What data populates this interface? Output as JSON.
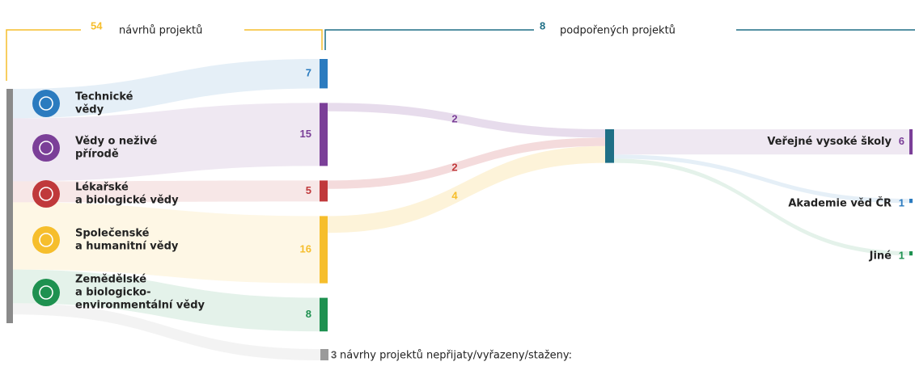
{
  "header": {
    "proposals": {
      "count": 54,
      "label": "návrhů projektů"
    },
    "supported": {
      "count": 8,
      "label": "podpořených projektů"
    }
  },
  "fields": [
    {
      "lines": [
        "Technické",
        "vědy"
      ],
      "count": 7,
      "color": "#2b7bbf"
    },
    {
      "lines": [
        "Vědy o neživé",
        "přírodě"
      ],
      "count": 15,
      "color": "#7b3f98"
    },
    {
      "lines": [
        "Lékařské",
        "a biologické vědy"
      ],
      "count": 5,
      "color": "#c0393b"
    },
    {
      "lines": [
        "Společenské",
        "a humanitní vědy"
      ],
      "count": 16,
      "color": "#f6be2c"
    },
    {
      "lines": [
        "Zemědělské",
        "a biologicko-",
        "environmentální vědy"
      ],
      "count": 8,
      "color": "#1e9150"
    }
  ],
  "flows": [
    {
      "value": 2,
      "color": "#7b3f98"
    },
    {
      "value": 2,
      "color": "#c0393b"
    },
    {
      "value": 4,
      "color": "#f6be2c"
    }
  ],
  "recipients": [
    {
      "name": "Veřejné vysoké školy",
      "count": 6,
      "color": "#7b3f98"
    },
    {
      "name": "Akademie věd ČR",
      "count": 1,
      "color": "#2b7bbf"
    },
    {
      "name": "Jiné",
      "count": 1,
      "color": "#1e9150"
    }
  ],
  "rejected": {
    "count": 3,
    "label": "návrhy projektů nepřijaty/vyřazeny/staženy:"
  }
}
